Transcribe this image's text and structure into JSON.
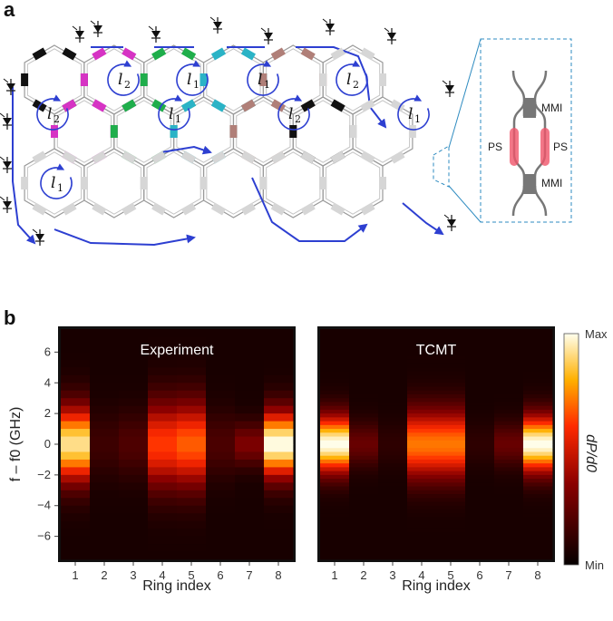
{
  "panel_a": {
    "letter": "a",
    "loop_labels": [
      {
        "base": "l",
        "sub": "2"
      },
      {
        "base": "l",
        "sub": "1"
      },
      {
        "base": "l",
        "sub": "1"
      },
      {
        "base": "l",
        "sub": "2"
      },
      {
        "base": "l",
        "sub": "2"
      },
      {
        "base": "l",
        "sub": "1"
      },
      {
        "base": "l",
        "sub": "2"
      },
      {
        "base": "l",
        "sub": "1"
      },
      {
        "base": "l",
        "sub": "1"
      }
    ],
    "inset": {
      "mmi_top": "MMI",
      "mmi_bottom": "MMI",
      "ps_left": "PS",
      "ps_right": "PS"
    },
    "colors": {
      "edge": "#2d3fd1",
      "black": "#111111",
      "cyan": "#2bb3c6",
      "magenta": "#d633c4",
      "brown": "#b07f78",
      "green": "#1fae4b",
      "grey": "#d6d6d6",
      "lattice": "#9a9a9a",
      "inset": "#2e8bc0",
      "heater": "#f0556a"
    }
  },
  "panel_b": {
    "letter": "b",
    "colorbar": {
      "max_label": "Max",
      "min_label": "Min",
      "label": "dP/d0"
    },
    "colors": {
      "bg": "#050000"
    },
    "chart_data": [
      {
        "type": "heatmap",
        "title": "Experiment",
        "xlabel": "Ring index",
        "ylabel": "f – f0 (GHz)",
        "x": [
          1,
          2,
          3,
          4,
          5,
          6,
          7,
          8
        ],
        "x_ticks": [
          "1",
          "2",
          "3",
          "4",
          "5",
          "6",
          "7",
          "8"
        ],
        "y_ticks": [
          "6",
          "4",
          "2",
          "0",
          "−2",
          "−4",
          "−6"
        ],
        "y_tick_values": [
          6,
          4,
          2,
          0,
          -2,
          -4,
          -6
        ],
        "ylim": [
          -7.5,
          7.5
        ],
        "y_bins": 30,
        "peak": [
          0.92,
          0.1,
          0.15,
          0.6,
          0.66,
          0.14,
          0.28,
          1.0
        ],
        "width": [
          1.7,
          1.5,
          1.5,
          2.0,
          2.0,
          1.5,
          1.0,
          1.5
        ]
      },
      {
        "type": "heatmap",
        "title": "TCMT",
        "xlabel": "Ring index",
        "x": [
          1,
          2,
          3,
          4,
          5,
          6,
          7,
          8
        ],
        "x_ticks": [
          "1",
          "2",
          "3",
          "4",
          "5",
          "6",
          "7",
          "8"
        ],
        "ylim": [
          -7.5,
          7.5
        ],
        "y_bins": 60,
        "peak": [
          1.0,
          0.22,
          0.06,
          0.7,
          0.7,
          0.06,
          0.22,
          1.0
        ],
        "width": [
          1.3,
          1.0,
          1.0,
          1.6,
          1.6,
          1.0,
          1.0,
          1.3
        ]
      }
    ]
  }
}
